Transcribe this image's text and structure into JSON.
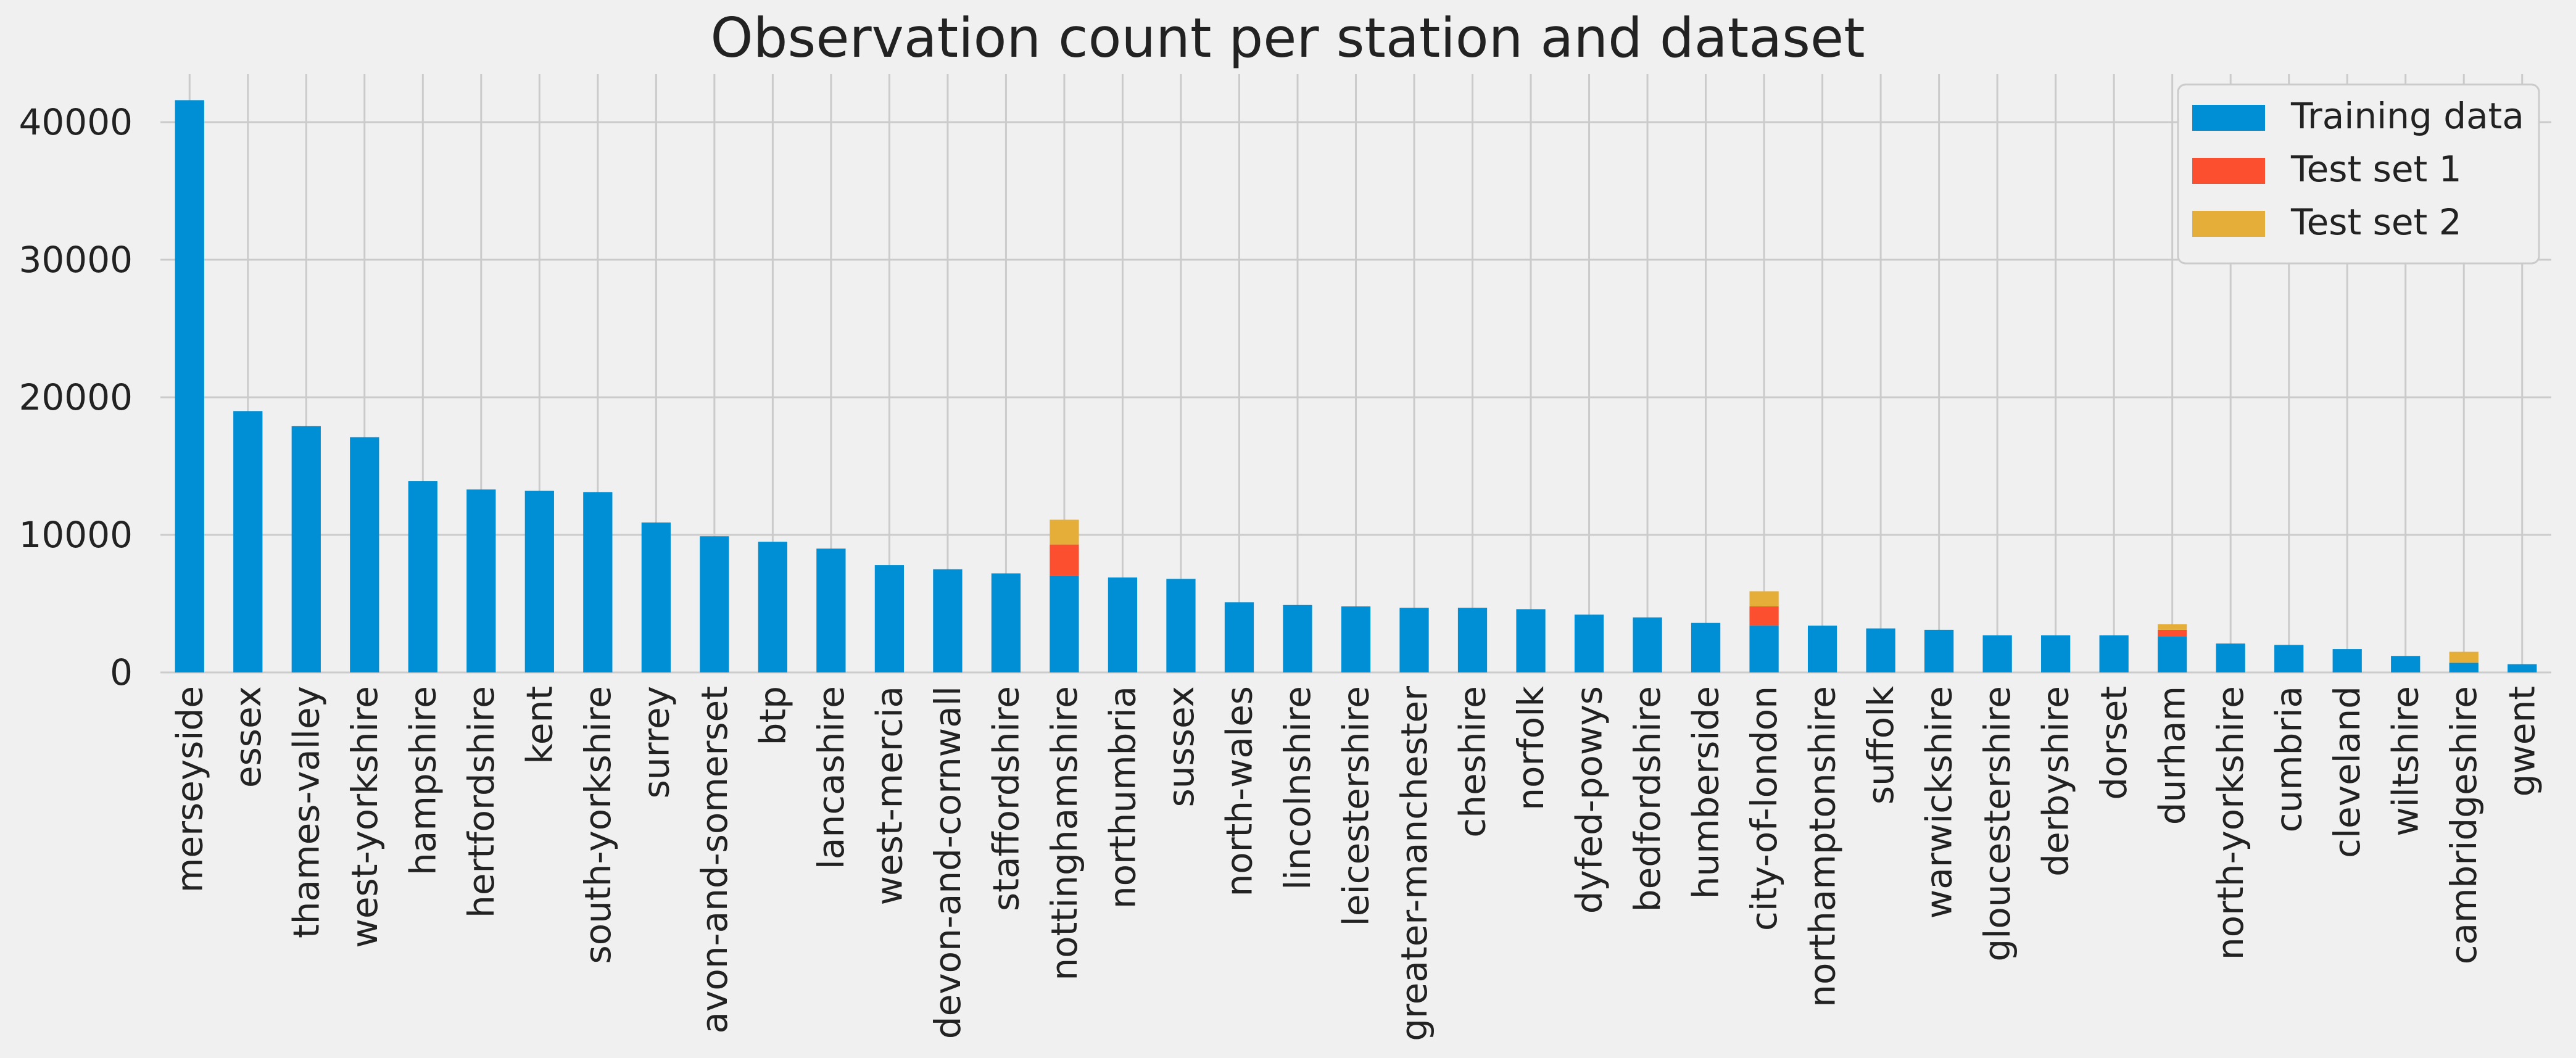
{
  "chart_data": {
    "type": "bar",
    "stacked": true,
    "title": "Observation count per station and dataset",
    "xlabel": "",
    "ylabel": "",
    "ylim": [
      0,
      43500
    ],
    "yticks": [
      0,
      10000,
      20000,
      30000,
      40000
    ],
    "grid": true,
    "legend_position": "top-right",
    "categories": [
      "merseyside",
      "essex",
      "thames-valley",
      "west-yorkshire",
      "hampshire",
      "hertfordshire",
      "kent",
      "south-yorkshire",
      "surrey",
      "avon-and-somerset",
      "btp",
      "lancashire",
      "west-mercia",
      "devon-and-cornwall",
      "staffordshire",
      "nottinghamshire",
      "northumbria",
      "sussex",
      "north-wales",
      "lincolnshire",
      "leicestershire",
      "greater-manchester",
      "cheshire",
      "norfolk",
      "dyfed-powys",
      "bedfordshire",
      "humberside",
      "city-of-london",
      "northamptonshire",
      "suffolk",
      "warwickshire",
      "gloucestershire",
      "derbyshire",
      "dorset",
      "durham",
      "north-yorkshire",
      "cumbria",
      "cleveland",
      "wiltshire",
      "cambridgeshire",
      "gwent"
    ],
    "series": [
      {
        "name": "Training data",
        "color": "#008fd5",
        "values": [
          41600,
          19000,
          17900,
          17100,
          13900,
          13300,
          13200,
          13100,
          10900,
          9900,
          9500,
          9000,
          7800,
          7500,
          7200,
          7000,
          6900,
          6800,
          5100,
          4900,
          4800,
          4700,
          4700,
          4600,
          4200,
          4000,
          3600,
          3400,
          3400,
          3200,
          3100,
          2700,
          2700,
          2700,
          2600,
          2100,
          2000,
          1700,
          1200,
          700,
          600
        ]
      },
      {
        "name": "Test set 1",
        "color": "#fc4f30",
        "values": [
          0,
          0,
          0,
          0,
          0,
          0,
          0,
          0,
          0,
          0,
          0,
          0,
          0,
          0,
          0,
          2300,
          0,
          0,
          0,
          0,
          0,
          0,
          0,
          0,
          0,
          0,
          0,
          1400,
          0,
          0,
          0,
          0,
          0,
          0,
          500,
          0,
          0,
          0,
          0,
          0,
          0
        ]
      },
      {
        "name": "Test set 2",
        "color": "#e5ae38",
        "values": [
          0,
          0,
          0,
          0,
          0,
          0,
          0,
          0,
          0,
          0,
          0,
          0,
          0,
          0,
          0,
          1800,
          0,
          0,
          0,
          0,
          0,
          0,
          0,
          0,
          0,
          0,
          0,
          1100,
          0,
          0,
          0,
          0,
          0,
          0,
          400,
          0,
          0,
          0,
          0,
          800,
          0
        ]
      }
    ]
  }
}
